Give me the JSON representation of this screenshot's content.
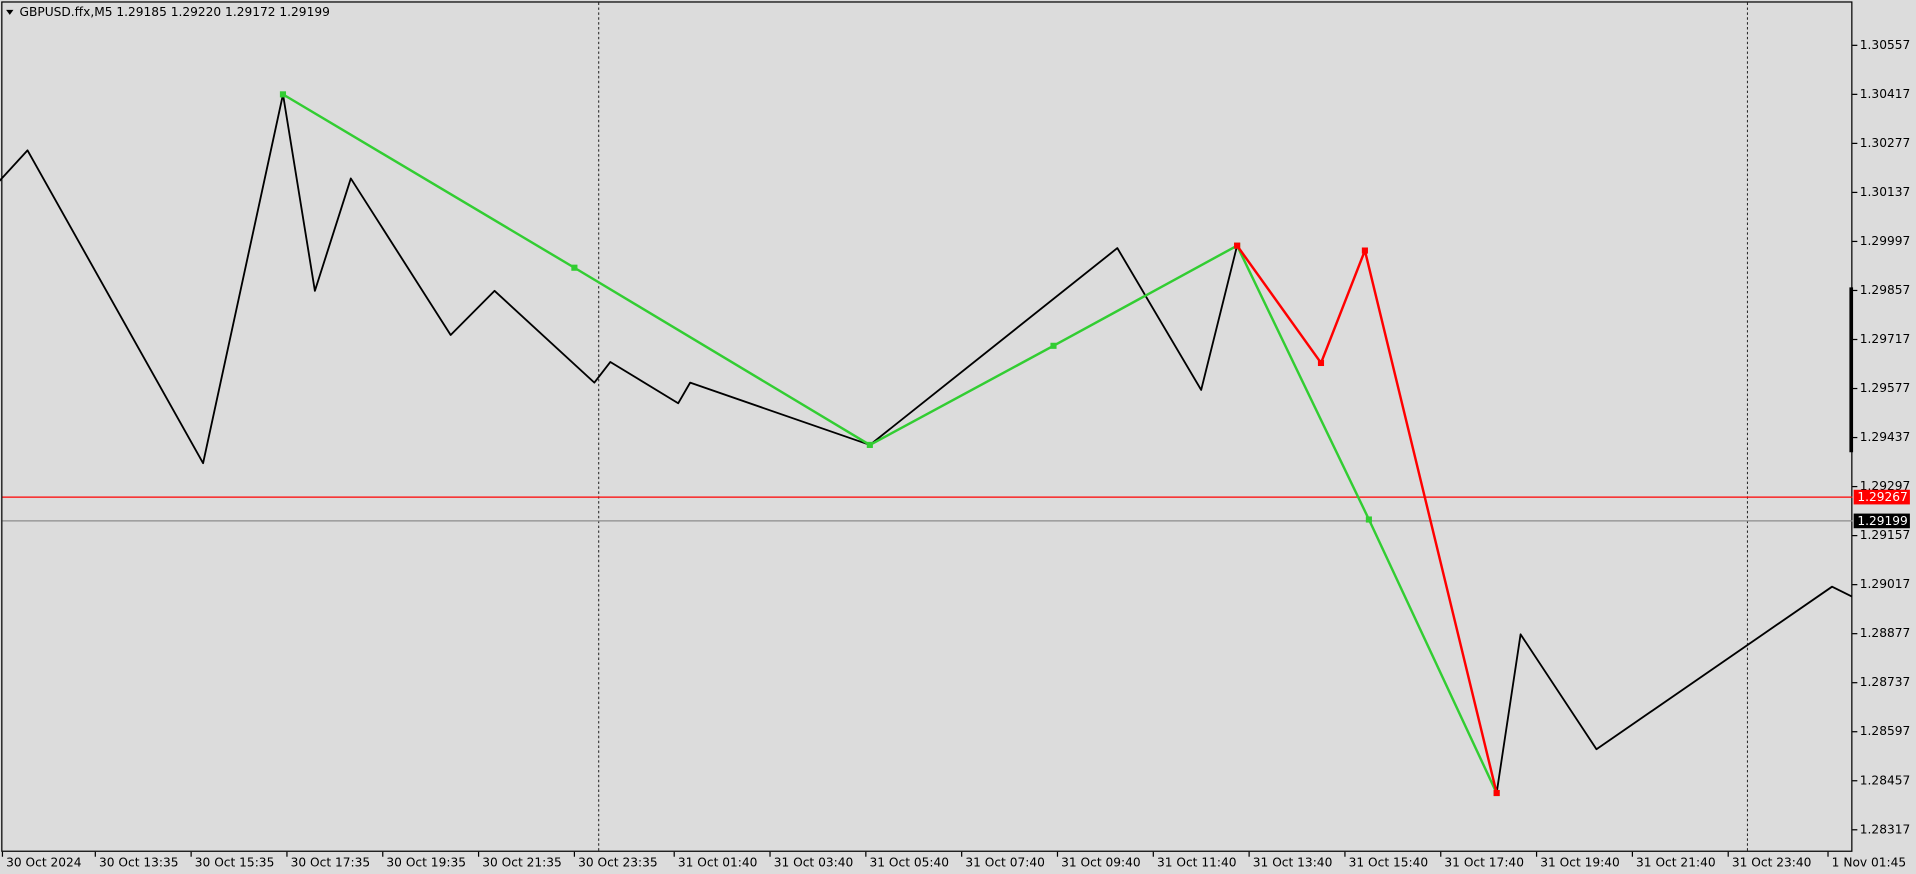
{
  "chart_data": {
    "type": "line",
    "title": "GBPUSD.ffx,M5  1.29185 1.29220 1.29172 1.29199",
    "ylim": [
      1.28254,
      1.30686
    ],
    "yticks": [
      1.30557,
      1.30417,
      1.30277,
      1.30137,
      1.29997,
      1.29857,
      1.29717,
      1.29577,
      1.29437,
      1.29297,
      1.29157,
      1.29017,
      1.28877,
      1.28737,
      1.28597,
      1.28457,
      1.28317
    ],
    "xticks": [
      "30 Oct 2024",
      "30 Oct 13:35",
      "30 Oct 15:35",
      "30 Oct 17:35",
      "30 Oct 19:35",
      "30 Oct 21:35",
      "30 Oct 23:35",
      "31 Oct 01:40",
      "31 Oct 03:40",
      "31 Oct 05:40",
      "31 Oct 07:40",
      "31 Oct 09:40",
      "31 Oct 11:40",
      "31 Oct 13:40",
      "31 Oct 15:40",
      "31 Oct 17:40",
      "31 Oct 19:40",
      "31 Oct 21:40",
      "31 Oct 23:40",
      "1 Nov 01:45"
    ],
    "series": [
      {
        "color": "#000000",
        "markers": false,
        "x": [
          "30 Oct 11:35",
          "30 Oct 12:10",
          "30 Oct 15:50",
          "30 Oct 17:30",
          "30 Oct 18:10",
          "30 Oct 18:55",
          "30 Oct 21:00",
          "30 Oct 21:55",
          "31 Oct 00:00",
          "31 Oct 00:20",
          "31 Oct 01:45",
          "31 Oct 02:00",
          "31 Oct 05:45",
          "31 Oct 10:55",
          "31 Oct 12:40",
          "31 Oct 13:25",
          null,
          "31 Oct 18:50",
          "31 Oct 19:20",
          "31 Oct 20:55",
          "1 Nov 01:50",
          "1 Nov 02:15"
        ],
        "values": [
          1.3017,
          1.30257,
          1.29364,
          1.30417,
          1.29856,
          1.30177,
          1.2973,
          1.29856,
          1.29594,
          1.29653,
          1.29535,
          1.29594,
          1.29416,
          1.29978,
          1.29573,
          1.29985,
          null,
          1.28422,
          1.28875,
          1.28547,
          1.29011,
          1.28983
        ]
      },
      {
        "color": "#32cd32",
        "markers": true,
        "x": [
          "30 Oct 17:30",
          "30 Oct 23:35",
          "31 Oct 05:45",
          "31 Oct 09:35",
          "31 Oct 13:25",
          "31 Oct 16:10",
          "31 Oct 18:50"
        ],
        "values": [
          1.30417,
          1.29922,
          1.29416,
          1.29699,
          1.29985,
          1.29203,
          1.28422
        ]
      },
      {
        "color": "#ff0000",
        "markers": true,
        "x": [
          "31 Oct 13:25",
          "31 Oct 15:10",
          "31 Oct 16:05",
          "31 Oct 18:50"
        ],
        "values": [
          1.29985,
          1.2965,
          1.29971,
          1.28422
        ]
      }
    ],
    "price_lines": [
      {
        "value": 1.29267,
        "color": "#ff0000",
        "label_color": "#ff0000"
      },
      {
        "value": 1.29199,
        "color": "#8c8c8c",
        "label_color": "#000000"
      }
    ]
  }
}
